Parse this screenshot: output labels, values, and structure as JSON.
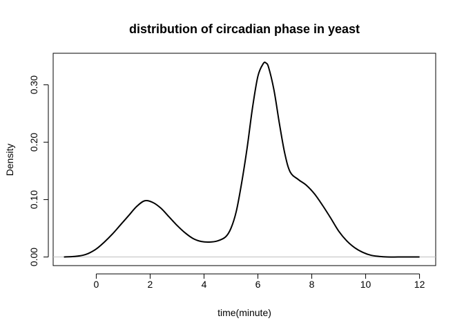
{
  "chart_data": {
    "type": "line",
    "title": "distribution of circadian phase in yeast",
    "xlabel": "time(minute)",
    "ylabel": "Density",
    "xlim": [
      -1.6,
      12.6
    ],
    "ylim": [
      -0.015,
      0.355
    ],
    "x_ticks": [
      0,
      2,
      4,
      6,
      8,
      10,
      12
    ],
    "x_tick_labels": [
      "0",
      "2",
      "4",
      "6",
      "8",
      "10",
      "12"
    ],
    "y_ticks": [
      0.0,
      0.1,
      0.2,
      0.3
    ],
    "y_tick_labels": [
      "0.00",
      "0.10",
      "0.20",
      "0.30"
    ],
    "grid": false,
    "baseline": 0,
    "line_color": "#000000",
    "baseline_color": "#bebebe",
    "series": [
      {
        "x": [
          -1.2,
          -0.8,
          -0.5,
          -0.3,
          0.0,
          0.3,
          0.6,
          0.9,
          1.2,
          1.5,
          1.8,
          2.1,
          2.4,
          2.7,
          3.0,
          3.3,
          3.6,
          3.9,
          4.2,
          4.5,
          4.8,
          5.0,
          5.2,
          5.4,
          5.6,
          5.8,
          6.0,
          6.2,
          6.3,
          6.4,
          6.6,
          6.8,
          7.0,
          7.2,
          7.5,
          7.8,
          8.1,
          8.4,
          8.7,
          9.0,
          9.3,
          9.6,
          9.9,
          10.2,
          10.5,
          10.8,
          11.2,
          11.6,
          12.0
        ],
        "y": [
          0.0,
          0.001,
          0.003,
          0.006,
          0.014,
          0.026,
          0.04,
          0.056,
          0.072,
          0.088,
          0.098,
          0.095,
          0.085,
          0.07,
          0.055,
          0.042,
          0.032,
          0.027,
          0.026,
          0.028,
          0.035,
          0.05,
          0.08,
          0.13,
          0.19,
          0.26,
          0.315,
          0.337,
          0.338,
          0.33,
          0.29,
          0.232,
          0.18,
          0.148,
          0.135,
          0.125,
          0.11,
          0.09,
          0.068,
          0.045,
          0.028,
          0.016,
          0.008,
          0.003,
          0.001,
          0.0,
          0.0,
          0.0,
          0.0
        ]
      }
    ]
  }
}
